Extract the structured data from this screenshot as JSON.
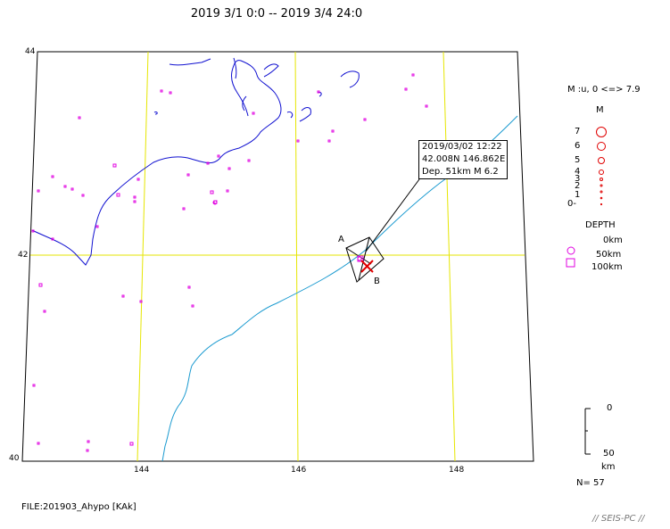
{
  "title": "2019 3/1 0:0 -- 2019 3/4 24:0",
  "axes": {
    "lat_ticks": [
      "44",
      "42",
      "40"
    ],
    "lon_ticks": [
      "144",
      "146",
      "148"
    ]
  },
  "callout": {
    "line1": "2019/03/02 12:22",
    "line2": "42.008N  146.862E",
    "line3": "Dep. 51km    M 6.2"
  },
  "labels": {
    "a": "A",
    "b": "B"
  },
  "legend": {
    "mag_range": "M :u, 0 <=> 7.9",
    "mag_heading": "M",
    "mag_values": [
      "7",
      "6",
      "5",
      "4",
      "3",
      "2",
      "1",
      "0-"
    ],
    "depth_heading": "DEPTH",
    "depth_values": [
      "0km",
      "50km",
      "100km"
    ],
    "scale_top": "0",
    "scale_bottom": "50",
    "scale_unit": "km",
    "count": "N= 57"
  },
  "footer": {
    "file": "FILE:201903_Ahypo [KAk]",
    "brand": "// SEIS-PC //"
  },
  "colors": {
    "grid": "#e6e600",
    "coast": "#1010d0",
    "trench": "#1a9ad0",
    "event": "#e000e0",
    "mainshock": "#e00000"
  },
  "icons": [
    "epicenter-marker",
    "mainshock-cross-icon",
    "magnitude-circle-icon",
    "depth-square-icon"
  ]
}
